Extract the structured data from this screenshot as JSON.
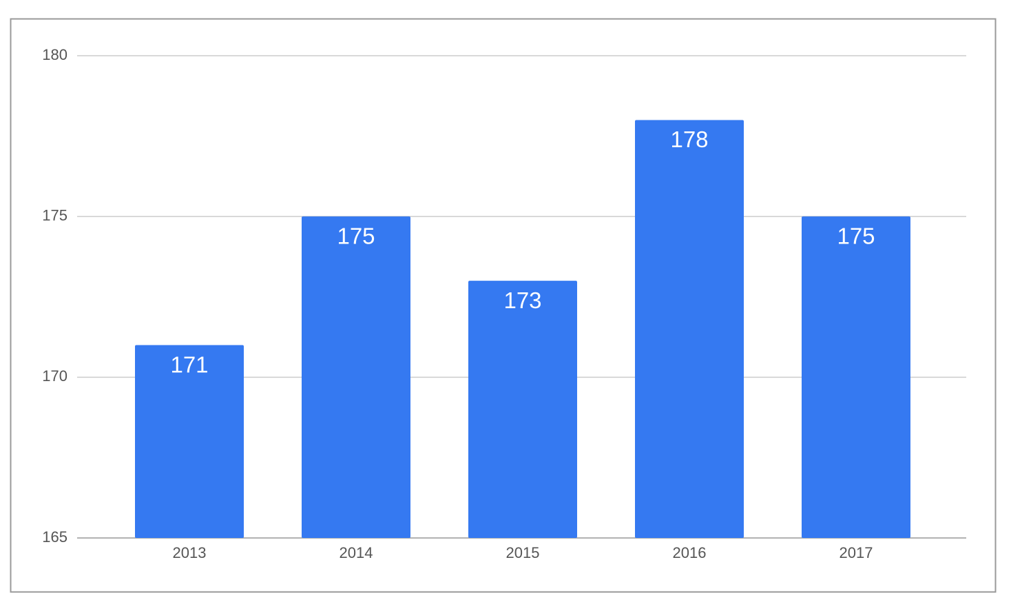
{
  "chart_data": {
    "type": "bar",
    "categories": [
      "2013",
      "2014",
      "2015",
      "2016",
      "2017"
    ],
    "values": [
      171,
      175,
      173,
      178,
      175
    ],
    "color": "#3579f1",
    "ylim": [
      165,
      180
    ],
    "yticks": [
      165,
      170,
      175,
      180
    ],
    "grid": true
  }
}
